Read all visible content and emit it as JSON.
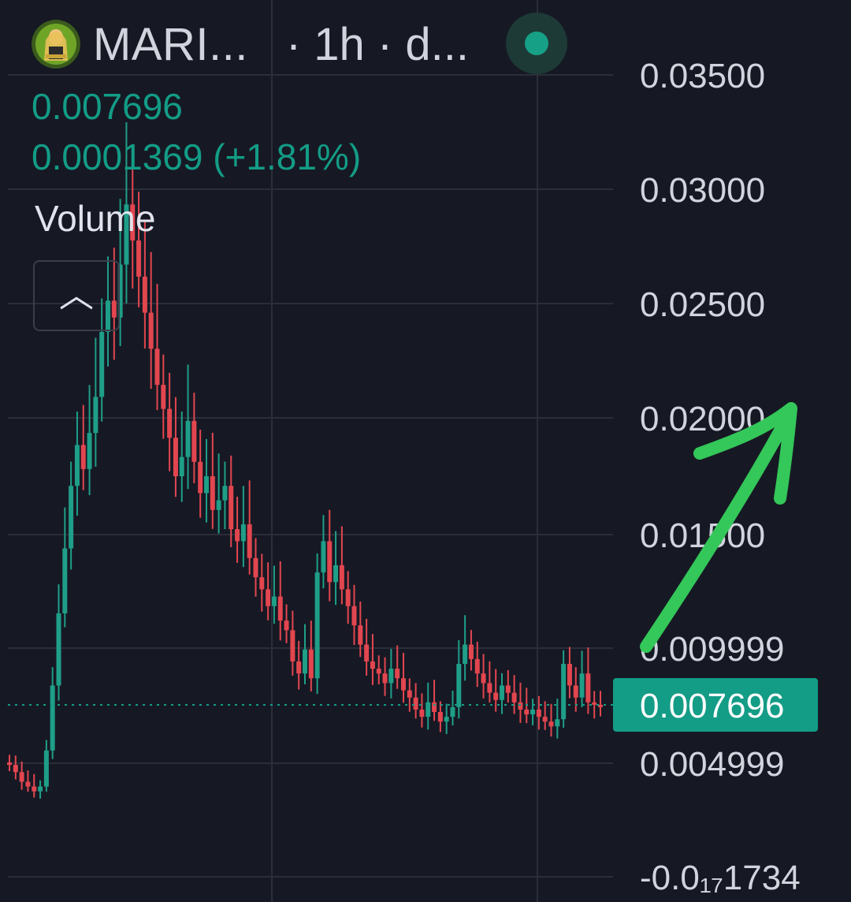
{
  "header": {
    "symbol": "MARI...",
    "interval_meta": "· 1h · d...",
    "avatar_icon": "token-avatar-icon",
    "live_icon": "live-status-dot-icon"
  },
  "legend": {
    "last_price": "0.007696",
    "change": "0.0001369 (+1.81%)",
    "volume_label": "Volume",
    "collapse_icon": "chevron-up-icon"
  },
  "colors": {
    "background": "#161924",
    "up": "#1f9e88",
    "down": "#e2464f",
    "price_tag": "#139c86",
    "axis_text": "#d1d4dc",
    "annotation_arrow": "#34c759"
  },
  "chart_data": {
    "type": "candlestick",
    "y_axis_labels": [
      "0.03500",
      "0.03000",
      "0.02500",
      "0.02000",
      "0.01500",
      "0.009999",
      "0.004999",
      "-0.0₁₇1734"
    ],
    "ylim": [
      -0.0005,
      0.037
    ],
    "grid": true,
    "current_price": 0.007696,
    "current_price_label": "0.007696",
    "annotation": "arrow-up",
    "series": [
      {
        "values": [
          0.0052,
          0.0049,
          0.0045,
          0.0043,
          0.0041,
          0.0043,
          0.0058,
          0.0085,
          0.0115,
          0.0142,
          0.0168,
          0.0185,
          0.0175,
          0.019,
          0.0205,
          0.0232,
          0.0245,
          0.0238,
          0.026,
          0.0285,
          0.027,
          0.0255,
          0.024,
          0.0225,
          0.021,
          0.02,
          0.0188,
          0.0172,
          0.018,
          0.0195,
          0.0178,
          0.0165,
          0.0172,
          0.0158,
          0.0162,
          0.0168,
          0.015,
          0.0145,
          0.0152,
          0.0138,
          0.013,
          0.0125,
          0.0118,
          0.0122,
          0.0112,
          0.0108,
          0.0095,
          0.009,
          0.01,
          0.0088,
          0.0132,
          0.0145,
          0.0128,
          0.0135,
          0.0125,
          0.0118,
          0.011,
          0.0102,
          0.0095,
          0.0092,
          0.009,
          0.0086,
          0.0092,
          0.0088,
          0.0083,
          0.008,
          0.0075,
          0.0072,
          0.0078,
          0.0074,
          0.007,
          0.0072,
          0.0076,
          0.0094,
          0.0102,
          0.0096,
          0.009,
          0.0086,
          0.0082,
          0.0079,
          0.0085,
          0.0082,
          0.0078,
          0.0075,
          0.0073,
          0.0075,
          0.0072,
          0.007,
          0.0068,
          0.0071,
          0.0094,
          0.0085,
          0.008,
          0.009,
          0.0078,
          0.0077,
          0.0076
        ]
      }
    ]
  }
}
